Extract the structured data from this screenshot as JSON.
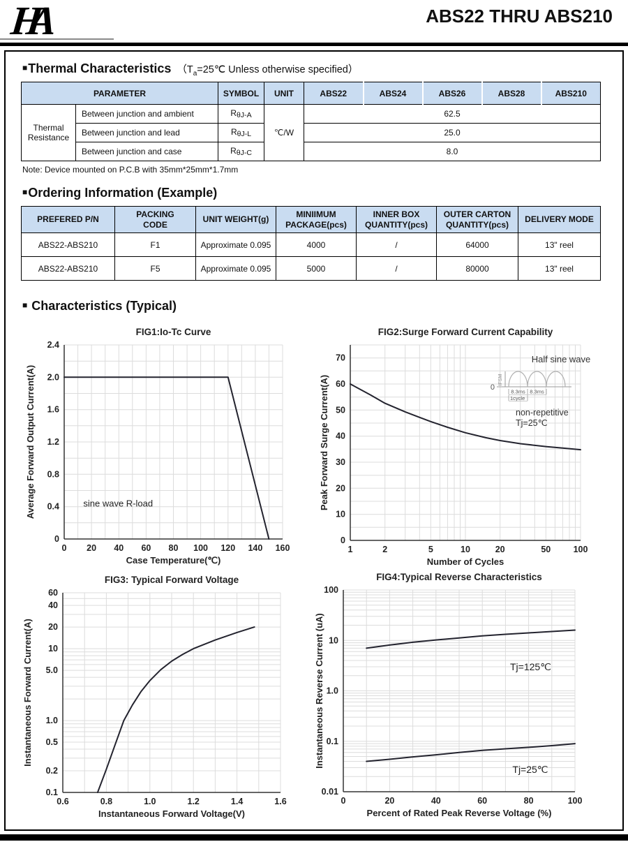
{
  "ui": {
    "section_bullet": "■"
  },
  "header": {
    "logo": "HA",
    "title": "ABS22 THRU ABS210"
  },
  "thermal": {
    "heading": "Thermal Characteristics",
    "subtitle_prefix": "（T",
    "subtitle_sub": "a",
    "subtitle_suffix": "=25℃ Unless otherwise specified）",
    "headers": {
      "parameter": "PARAMETER",
      "symbol": "SYMBOL",
      "unit": "UNIT",
      "devices": [
        "ABS22",
        "ABS24",
        "ABS26",
        "ABS28",
        "ABS210"
      ]
    },
    "group": "Thermal Resistance",
    "unit": "℃/W",
    "rows": [
      {
        "parameter": "Between junction and ambient",
        "symbol_prefix": "R",
        "symbol_sub": "θJ-A",
        "value": "62.5"
      },
      {
        "parameter": "Between junction and lead",
        "symbol_prefix": "R",
        "symbol_sub": "θJ-L",
        "value": "25.0"
      },
      {
        "parameter": "Between junction and case",
        "symbol_prefix": "R",
        "symbol_sub": "θJ-C",
        "value": "8.0"
      }
    ],
    "note": "Note: Device mounted on P.C.B with 35mm*25mm*1.7mm"
  },
  "ordering": {
    "heading": "Ordering Information (Example)",
    "headers": [
      {
        "line1": "PREFERED P/N",
        "line2": ""
      },
      {
        "line1": "PACKING",
        "line2": "CODE"
      },
      {
        "line1": "UNIT WEIGHT(g)",
        "line2": ""
      },
      {
        "line1": "MINIIMUM",
        "line2": "PACKAGE(pcs)"
      },
      {
        "line1": "INNER BOX",
        "line2": "QUANTITY(pcs)"
      },
      {
        "line1": "OUTER CARTON",
        "line2": "QUANTITY(pcs)"
      },
      {
        "line1": "DELIVERY MODE",
        "line2": ""
      }
    ],
    "rows": [
      [
        "ABS22-ABS210",
        "F1",
        "Approximate 0.095",
        "4000",
        "/",
        "64000",
        "13\" reel"
      ],
      [
        "ABS22-ABS210",
        "F5",
        "Approximate 0.095",
        "5000",
        "/",
        "80000",
        "13\" reel"
      ]
    ]
  },
  "characteristics": {
    "heading": "Characteristics (Typical)"
  },
  "colors": {
    "table_header_bg": "#c9dcf1",
    "curve": "#23232e",
    "grid": "#dcdcdc",
    "axis": "#333333",
    "text": "#222222"
  },
  "chart_data": [
    {
      "id": "fig1",
      "type": "line",
      "title": "FIG1:Io-Tc Curve",
      "xlabel": "Case Temperature(℃)",
      "ylabel": "Average Forward Output Current(A)",
      "x": {
        "scale": "linear",
        "min": 0,
        "max": 160,
        "ticks": [
          0,
          20,
          40,
          60,
          80,
          100,
          120,
          140,
          160
        ],
        "tick_labels": [
          "0",
          "20",
          "40",
          "60",
          "80",
          "100",
          "120",
          "140",
          "160"
        ],
        "minor": [
          10,
          30,
          50,
          70,
          90,
          110,
          130,
          150
        ]
      },
      "y": {
        "scale": "linear",
        "min": 0,
        "max": 2.4,
        "ticks": [
          0,
          0.4,
          0.8,
          1.2,
          1.6,
          2.0,
          2.4
        ],
        "tick_labels": [
          "0",
          "0.4",
          "0.8",
          "1.2",
          "1.6",
          "2.0",
          "2.4"
        ],
        "minor": [
          0.2,
          0.6,
          1.0,
          1.4,
          1.8,
          2.2
        ]
      },
      "series": [
        {
          "name": "Io-Tc",
          "points": [
            [
              0,
              2.0
            ],
            [
              120,
              2.0
            ],
            [
              150,
              0
            ]
          ]
        }
      ],
      "annotations": [
        {
          "text": "sine wave R-load",
          "x": 14,
          "y": 0.4,
          "anchor": "start",
          "size": 13
        }
      ]
    },
    {
      "id": "fig2",
      "type": "line",
      "title": "FIG2:Surge Forward Current Capability",
      "xlabel": "Number of Cycles",
      "ylabel": "Peak Forward Surge Current(A)",
      "x": {
        "scale": "log",
        "min": 1,
        "max": 100,
        "ticks": [
          1,
          2,
          5,
          10,
          20,
          50,
          100
        ],
        "tick_labels": [
          "1",
          "2",
          "5",
          "10",
          "20",
          "50",
          "100"
        ],
        "minor": [
          3,
          4,
          6,
          7,
          8,
          9,
          30,
          40,
          60,
          70,
          80,
          90
        ]
      },
      "y": {
        "scale": "linear",
        "min": 0,
        "max": 75,
        "ticks": [
          0,
          10,
          20,
          30,
          40,
          50,
          60,
          70
        ],
        "tick_labels": [
          "0",
          "10",
          "20",
          "30",
          "40",
          "50",
          "60",
          "70"
        ],
        "minor": [
          5,
          15,
          25,
          35,
          45,
          55,
          65,
          75
        ]
      },
      "series": [
        {
          "name": "surge",
          "points": [
            [
              1,
              60
            ],
            [
              1.5,
              55.8
            ],
            [
              2,
              52.6
            ],
            [
              3,
              49.3
            ],
            [
              4,
              47.2
            ],
            [
              5,
              45.6
            ],
            [
              7,
              43.4
            ],
            [
              10,
              41.3
            ],
            [
              15,
              39.4
            ],
            [
              20,
              38.3
            ],
            [
              30,
              37.1
            ],
            [
              50,
              36.0
            ],
            [
              70,
              35.4
            ],
            [
              100,
              34.8
            ]
          ]
        }
      ],
      "annotations": [],
      "inset": {
        "title": "Half sine wave",
        "y_axis_label": "IFSM",
        "zero_label": "0",
        "interval_labels": [
          "8.3ms",
          "8.3ms"
        ],
        "cycle_label": "1cycle",
        "note_line1": "non-repetitive",
        "note_line2": "Tj=25℃"
      }
    },
    {
      "id": "fig3",
      "type": "line",
      "title": "FIG3: Typical Forward Voltage",
      "xlabel": "Instantaneous Forward Voltage(V)",
      "ylabel": "Instantaneous Forward Current(A)",
      "x": {
        "scale": "linear",
        "min": 0.6,
        "max": 1.6,
        "ticks": [
          0.6,
          0.8,
          1.0,
          1.2,
          1.4,
          1.6
        ],
        "tick_labels": [
          "0.6",
          "0.8",
          "1.0",
          "1.2",
          "1.4",
          "1.6"
        ],
        "minor": [
          0.7,
          0.9,
          1.1,
          1.3,
          1.5
        ]
      },
      "y": {
        "scale": "log",
        "min": 0.1,
        "max": 60,
        "ticks": [
          0.1,
          0.2,
          0.5,
          1.0,
          5.0,
          10,
          20,
          40,
          60
        ],
        "tick_labels": [
          "0.1",
          "0.2",
          "0.5",
          "1.0",
          "5.0",
          "10",
          "20",
          "40",
          "60"
        ],
        "minor": [
          0.3,
          0.4,
          0.6,
          0.7,
          0.8,
          0.9,
          2,
          3,
          4,
          6,
          7,
          8,
          9,
          30,
          50
        ]
      },
      "series": [
        {
          "name": "vf",
          "points": [
            [
              0.76,
              0.1
            ],
            [
              0.8,
              0.21
            ],
            [
              0.84,
              0.46
            ],
            [
              0.88,
              1.0
            ],
            [
              0.92,
              1.65
            ],
            [
              0.96,
              2.55
            ],
            [
              1.0,
              3.6
            ],
            [
              1.05,
              5.1
            ],
            [
              1.1,
              6.7
            ],
            [
              1.15,
              8.3
            ],
            [
              1.2,
              10
            ],
            [
              1.3,
              13.2
            ],
            [
              1.4,
              16.8
            ],
            [
              1.48,
              20
            ]
          ]
        }
      ],
      "annotations": []
    },
    {
      "id": "fig4",
      "type": "line",
      "title": "FIG4:Typical Reverse Characteristics",
      "xlabel": "Percent of Rated Peak Reverse Voltage  (%)",
      "ylabel": "Instantaneous Reverse Current (uA)",
      "x": {
        "scale": "linear",
        "min": 0,
        "max": 100,
        "ticks": [
          0,
          20,
          40,
          60,
          80,
          100
        ],
        "tick_labels": [
          "0",
          "20",
          "40",
          "60",
          "80",
          "100"
        ],
        "minor": [
          10,
          30,
          50,
          70,
          90
        ]
      },
      "y": {
        "scale": "log",
        "min": 0.01,
        "max": 100,
        "ticks": [
          0.01,
          0.1,
          1.0,
          10,
          100
        ],
        "tick_labels": [
          "0.01",
          "0.1",
          "1.0",
          "10",
          "100"
        ],
        "minor": [
          0.02,
          0.03,
          0.04,
          0.05,
          0.06,
          0.07,
          0.08,
          0.09,
          0.2,
          0.3,
          0.4,
          0.5,
          0.6,
          0.7,
          0.8,
          0.9,
          2,
          3,
          4,
          5,
          6,
          7,
          8,
          9,
          20,
          30,
          40,
          50,
          60,
          70,
          80,
          90
        ]
      },
      "series": [
        {
          "name": "Tj=125C",
          "points": [
            [
              10,
              7
            ],
            [
              20,
              8.1
            ],
            [
              30,
              9.2
            ],
            [
              40,
              10.2
            ],
            [
              50,
              11.2
            ],
            [
              60,
              12.3
            ],
            [
              70,
              13.2
            ],
            [
              80,
              14.1
            ],
            [
              90,
              15.0
            ],
            [
              100,
              16.0
            ]
          ]
        },
        {
          "name": "Tj=25C",
          "points": [
            [
              10,
              0.04
            ],
            [
              20,
              0.044
            ],
            [
              30,
              0.049
            ],
            [
              40,
              0.054
            ],
            [
              50,
              0.06
            ],
            [
              60,
              0.066
            ],
            [
              70,
              0.071
            ],
            [
              80,
              0.076
            ],
            [
              90,
              0.082
            ],
            [
              100,
              0.09
            ]
          ]
        }
      ],
      "annotations": [
        {
          "text": "Tj=125℃",
          "x": 72,
          "y": 2.56,
          "anchor": "start",
          "size": 14
        },
        {
          "text": "Tj=25℃",
          "x": 73,
          "y": 0.0236,
          "anchor": "start",
          "size": 14
        }
      ]
    }
  ]
}
